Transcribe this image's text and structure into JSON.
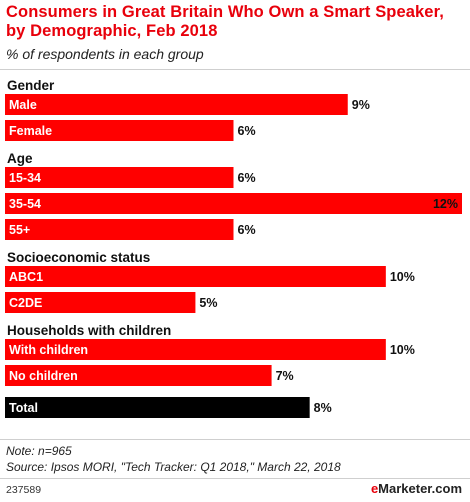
{
  "title": "Consumers in Great Britain Who Own a Smart Speaker, by Demographic, Feb 2018",
  "subtitle": "% of respondents in each group",
  "note": "Note: n=965",
  "source": "Source: Ipsos MORI, \"Tech Tracker: Q1 2018,\" March 22, 2018",
  "chart_id": "237589",
  "brand": {
    "prefix": "e",
    "name": "Marketer",
    "suffix": ".com"
  },
  "colors": {
    "bar": "#ff0000",
    "total": "#000000",
    "title": "#e8000b"
  },
  "chart_data": {
    "type": "bar",
    "orientation": "horizontal",
    "unit": "%",
    "xlim": [
      0,
      12
    ],
    "grid": false,
    "groups": [
      {
        "name": "Gender",
        "items": [
          {
            "label": "Male",
            "value": 9,
            "display": "9%"
          },
          {
            "label": "Female",
            "value": 6,
            "display": "6%"
          }
        ]
      },
      {
        "name": "Age",
        "items": [
          {
            "label": "15-34",
            "value": 6,
            "display": "6%"
          },
          {
            "label": "35-54",
            "value": 12,
            "display": "12%"
          },
          {
            "label": "55+",
            "value": 6,
            "display": "6%"
          }
        ]
      },
      {
        "name": "Socioeconomic status",
        "items": [
          {
            "label": "ABC1",
            "value": 10,
            "display": "10%"
          },
          {
            "label": "C2DE",
            "value": 5,
            "display": "5%"
          }
        ]
      },
      {
        "name": "Households with children",
        "items": [
          {
            "label": "With children",
            "value": 10,
            "display": "10%"
          },
          {
            "label": "No children",
            "value": 7,
            "display": "7%"
          }
        ]
      },
      {
        "name": "",
        "items": [
          {
            "label": "Total",
            "value": 8,
            "display": "8%",
            "highlight": true
          }
        ]
      }
    ]
  }
}
